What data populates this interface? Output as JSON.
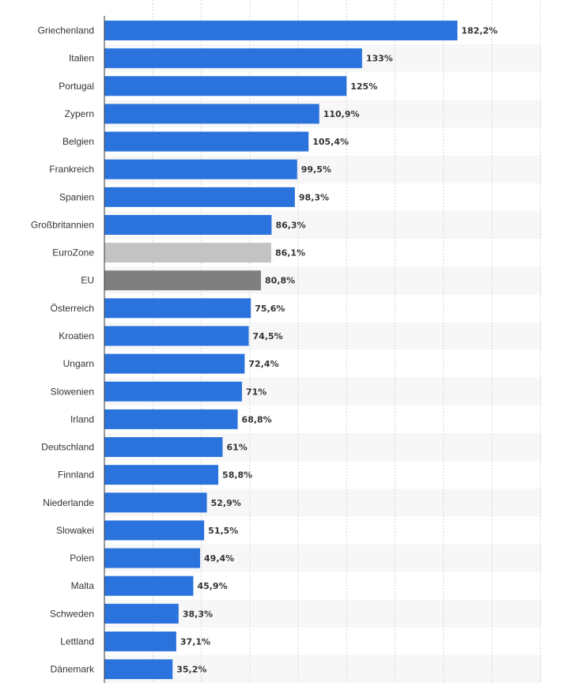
{
  "chart_data": {
    "type": "bar",
    "orientation": "horizontal",
    "unit": "%",
    "xlim": [
      0,
      180
    ],
    "grid": true,
    "legend": "none",
    "categories": [
      "Griechenland",
      "Italien",
      "Portugal",
      "Zypern",
      "Belgien",
      "Frankreich",
      "Spanien",
      "Großbritannien",
      "EuroZone",
      "EU",
      "Österreich",
      "Kroatien",
      "Ungarn",
      "Slowenien",
      "Irland",
      "Deutschland",
      "Finnland",
      "Niederlande",
      "Slowakei",
      "Polen",
      "Malta",
      "Schweden",
      "Lettland",
      "Dänemark"
    ],
    "values": [
      182.2,
      133,
      125,
      110.9,
      105.4,
      99.5,
      98.3,
      86.3,
      86.1,
      80.8,
      75.6,
      74.5,
      72.4,
      71,
      68.8,
      61,
      58.8,
      52.9,
      51.5,
      49.4,
      45.9,
      38.3,
      37.1,
      35.2
    ],
    "value_labels": [
      "182,2%",
      "133%",
      "125%",
      "110,9%",
      "105,4%",
      "99,5%",
      "98,3%",
      "86,3%",
      "86,1%",
      "80,8%",
      "75,6%",
      "74,5%",
      "72,4%",
      "71%",
      "68,8%",
      "61%",
      "58,8%",
      "52,9%",
      "51,5%",
      "49,4%",
      "45,9%",
      "38,3%",
      "37,1%",
      "35,2%"
    ],
    "bar_colors": [
      "#2a73dd",
      "#2a73dd",
      "#2a73dd",
      "#2a73dd",
      "#2a73dd",
      "#2a73dd",
      "#2a73dd",
      "#2a73dd",
      "#c3c3c3",
      "#7f7f7f",
      "#2a73dd",
      "#2a73dd",
      "#2a73dd",
      "#2a73dd",
      "#2a73dd",
      "#2a73dd",
      "#2a73dd",
      "#2a73dd",
      "#2a73dd",
      "#2a73dd",
      "#2a73dd",
      "#2a73dd",
      "#2a73dd",
      "#2a73dd"
    ],
    "colors": {
      "bar": "#2a73dd",
      "eurozone": "#c3c3c3",
      "eu": "#7f7f7f",
      "stripe": "#f7f7f7",
      "grid": "#d6d6d6",
      "axis": "#333333",
      "text": "#333333"
    }
  }
}
